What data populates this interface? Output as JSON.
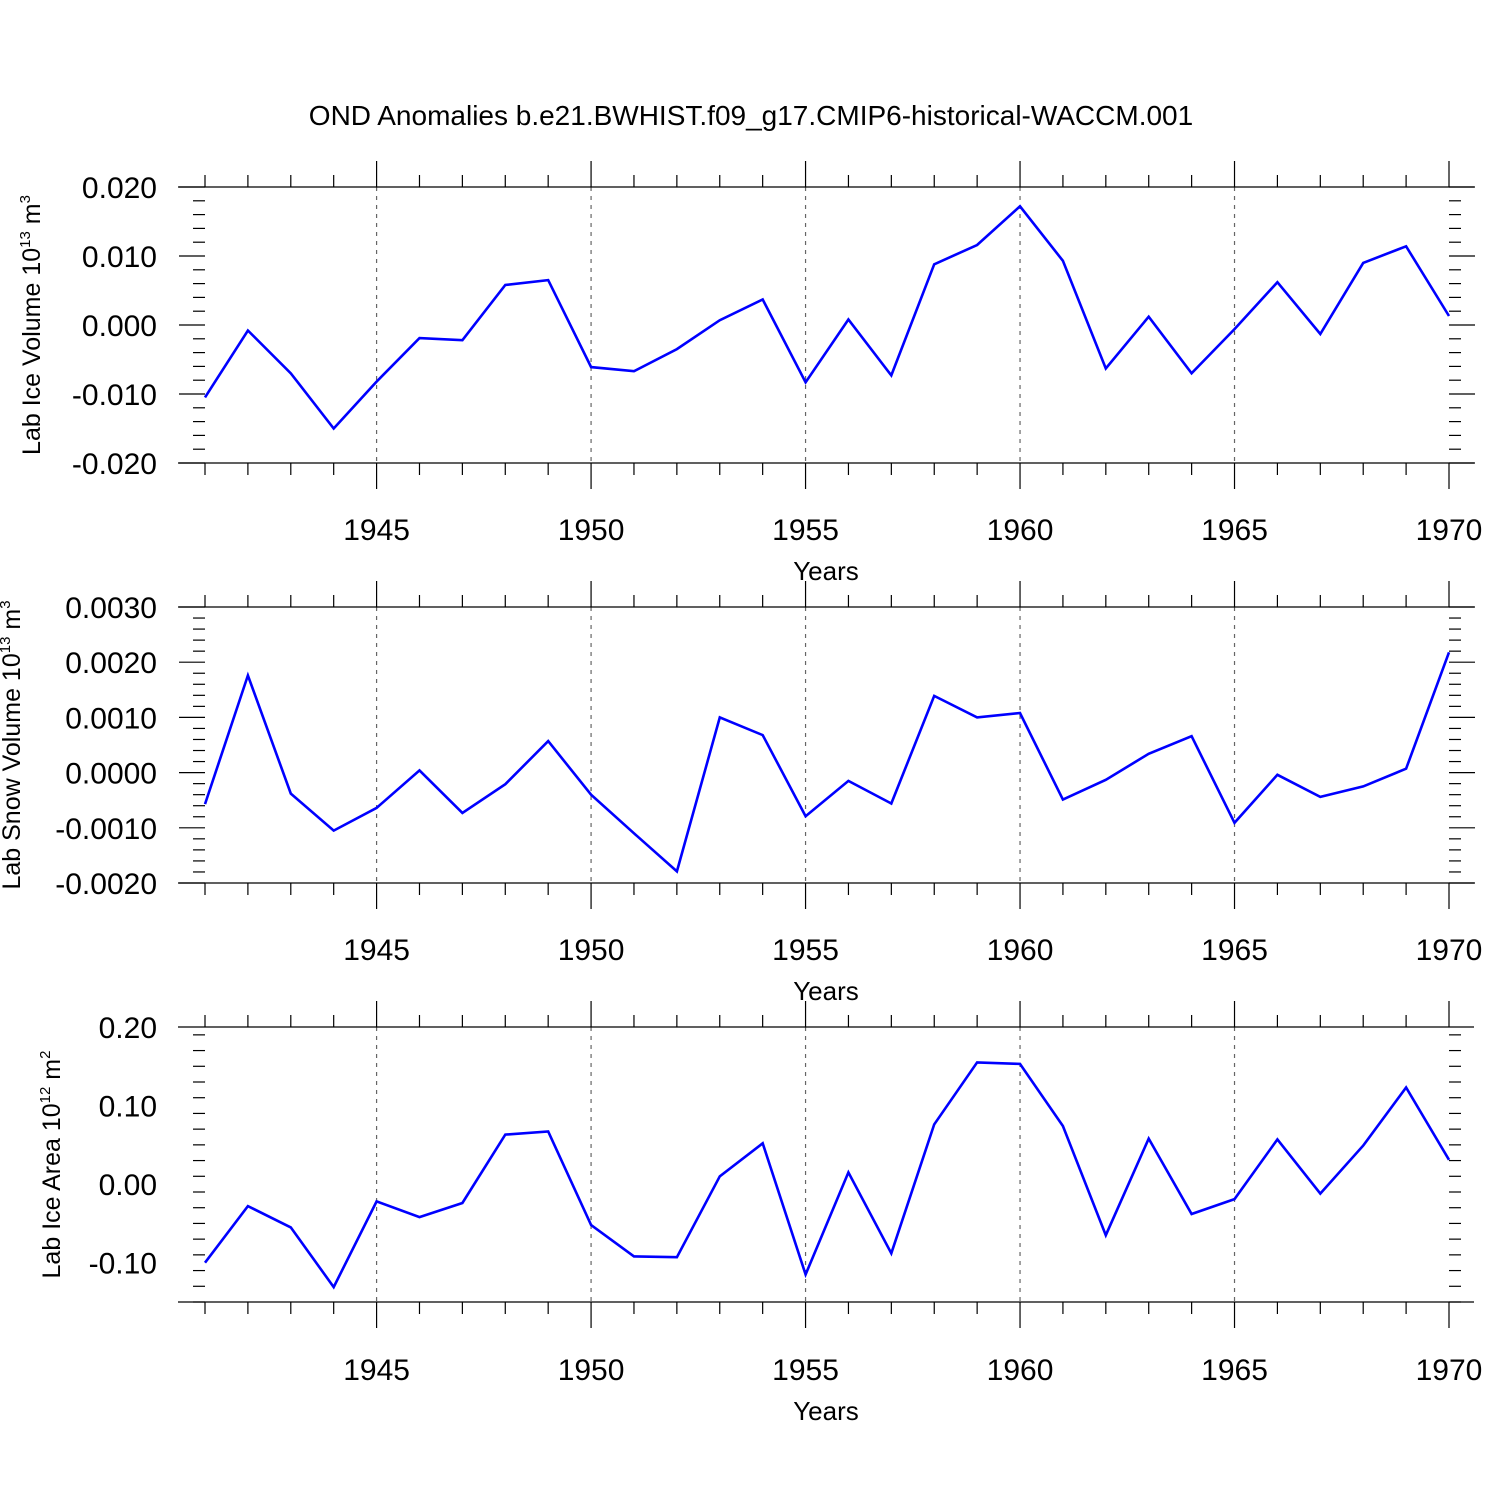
{
  "figure_title": "OND Anomalies b.e21.BWHIST.f09_g17.CMIP6-historical-WACCM.001",
  "colors": {
    "line": "#0000ff",
    "axis": "#000000",
    "grid": "#666666"
  },
  "chart_data": [
    {
      "type": "line",
      "title": "OND Anomalies b.e21.BWHIST.f09_g17.CMIP6-historical-WACCM.001",
      "ylabel": {
        "text": "Lab Ice Volume 10",
        "exponent": "13",
        "unit": "m",
        "unit_exponent": "3"
      },
      "xlabel": "Years",
      "xlim": [
        1941,
        1970
      ],
      "ylim": [
        -0.02,
        0.02
      ],
      "yticks": [
        -0.02,
        -0.01,
        0.0,
        0.01,
        0.02
      ],
      "ytick_labels": [
        "-0.020",
        "-0.010",
        "0.000",
        "0.010",
        "0.020"
      ],
      "xticks": [
        1945,
        1950,
        1955,
        1960,
        1965,
        1970
      ],
      "xtick_labels": [
        "1945",
        "1950",
        "1955",
        "1960",
        "1965",
        "1970"
      ],
      "grid": "vertical dashed at major x ticks",
      "series": [
        {
          "name": "Lab Ice Volume",
          "x": [
            1941,
            1942,
            1943,
            1944,
            1945,
            1946,
            1947,
            1948,
            1949,
            1950,
            1951,
            1952,
            1953,
            1954,
            1955,
            1956,
            1957,
            1958,
            1959,
            1960,
            1961,
            1962,
            1963,
            1964,
            1965,
            1966,
            1967,
            1968,
            1969,
            1970
          ],
          "values": [
            -0.0105,
            -0.0008,
            -0.007,
            -0.015,
            -0.0082,
            -0.0019,
            -0.0022,
            0.0058,
            0.0065,
            -0.0061,
            -0.0067,
            -0.0035,
            0.0007,
            0.0037,
            -0.0083,
            0.0008,
            -0.0073,
            0.0088,
            0.0116,
            0.0172,
            0.0093,
            -0.0063,
            0.0012,
            -0.007,
            -0.0006,
            0.0062,
            -0.0013,
            0.009,
            0.0114,
            0.0013
          ]
        }
      ]
    },
    {
      "type": "line",
      "ylabel": {
        "text": "Lab Snow Volume 10",
        "exponent": "13",
        "unit": "m",
        "unit_exponent": "3"
      },
      "xlabel": "Years",
      "xlim": [
        1941,
        1970
      ],
      "ylim": [
        -0.002,
        0.003
      ],
      "yticks": [
        -0.002,
        -0.001,
        0.0,
        0.001,
        0.002,
        0.003
      ],
      "ytick_labels": [
        "-0.0020",
        "-0.0010",
        "0.0000",
        "0.0010",
        "0.0020",
        "0.0030"
      ],
      "xticks": [
        1945,
        1950,
        1955,
        1960,
        1965,
        1970
      ],
      "xtick_labels": [
        "1945",
        "1950",
        "1955",
        "1960",
        "1965",
        "1970"
      ],
      "grid": "vertical dashed at major x ticks",
      "series": [
        {
          "name": "Lab Snow Volume",
          "x": [
            1941,
            1942,
            1943,
            1944,
            1945,
            1946,
            1947,
            1948,
            1949,
            1950,
            1951,
            1952,
            1953,
            1954,
            1955,
            1956,
            1957,
            1958,
            1959,
            1960,
            1961,
            1962,
            1963,
            1964,
            1965,
            1966,
            1967,
            1968,
            1969,
            1970
          ],
          "values": [
            -0.00057,
            0.00176,
            -0.00038,
            -0.00105,
            -0.00064,
            4e-05,
            -0.00073,
            -0.00021,
            0.00057,
            -0.0004,
            -0.0011,
            -0.00179,
            0.001,
            0.00068,
            -0.00079,
            -0.00015,
            -0.00056,
            0.00139,
            0.001,
            0.00108,
            -0.00049,
            -0.00013,
            0.00034,
            0.00066,
            -0.00091,
            -4e-05,
            -0.00044,
            -0.00025,
            7e-05,
            0.00218
          ]
        }
      ]
    },
    {
      "type": "line",
      "ylabel": {
        "text": "Lab Ice Area 10",
        "exponent": "12",
        "unit": "m",
        "unit_exponent": "2"
      },
      "xlabel": "Years",
      "xlim": [
        1941,
        1970
      ],
      "ylim": [
        -0.15,
        0.2
      ],
      "yticks": [
        -0.1,
        0.0,
        0.1,
        0.2
      ],
      "ytick_labels": [
        "-0.10",
        "0.00",
        "0.10",
        "0.20"
      ],
      "xticks": [
        1945,
        1950,
        1955,
        1960,
        1965,
        1970
      ],
      "xtick_labels": [
        "1945",
        "1950",
        "1955",
        "1960",
        "1965",
        "1970"
      ],
      "grid": "vertical dashed at major x ticks",
      "series": [
        {
          "name": "Lab Ice Area",
          "x": [
            1941,
            1942,
            1943,
            1944,
            1945,
            1946,
            1947,
            1948,
            1949,
            1950,
            1951,
            1952,
            1953,
            1954,
            1955,
            1956,
            1957,
            1958,
            1959,
            1960,
            1961,
            1962,
            1963,
            1964,
            1965,
            1966,
            1967,
            1968,
            1969,
            1970
          ],
          "values": [
            -0.1,
            -0.028,
            -0.055,
            -0.131,
            -0.022,
            -0.042,
            -0.024,
            0.063,
            0.067,
            -0.052,
            -0.092,
            -0.093,
            0.01,
            0.052,
            -0.115,
            0.015,
            -0.088,
            0.076,
            0.155,
            0.153,
            0.074,
            -0.065,
            0.058,
            -0.038,
            -0.019,
            0.057,
            -0.012,
            0.049,
            0.123,
            0.031
          ]
        }
      ]
    }
  ]
}
